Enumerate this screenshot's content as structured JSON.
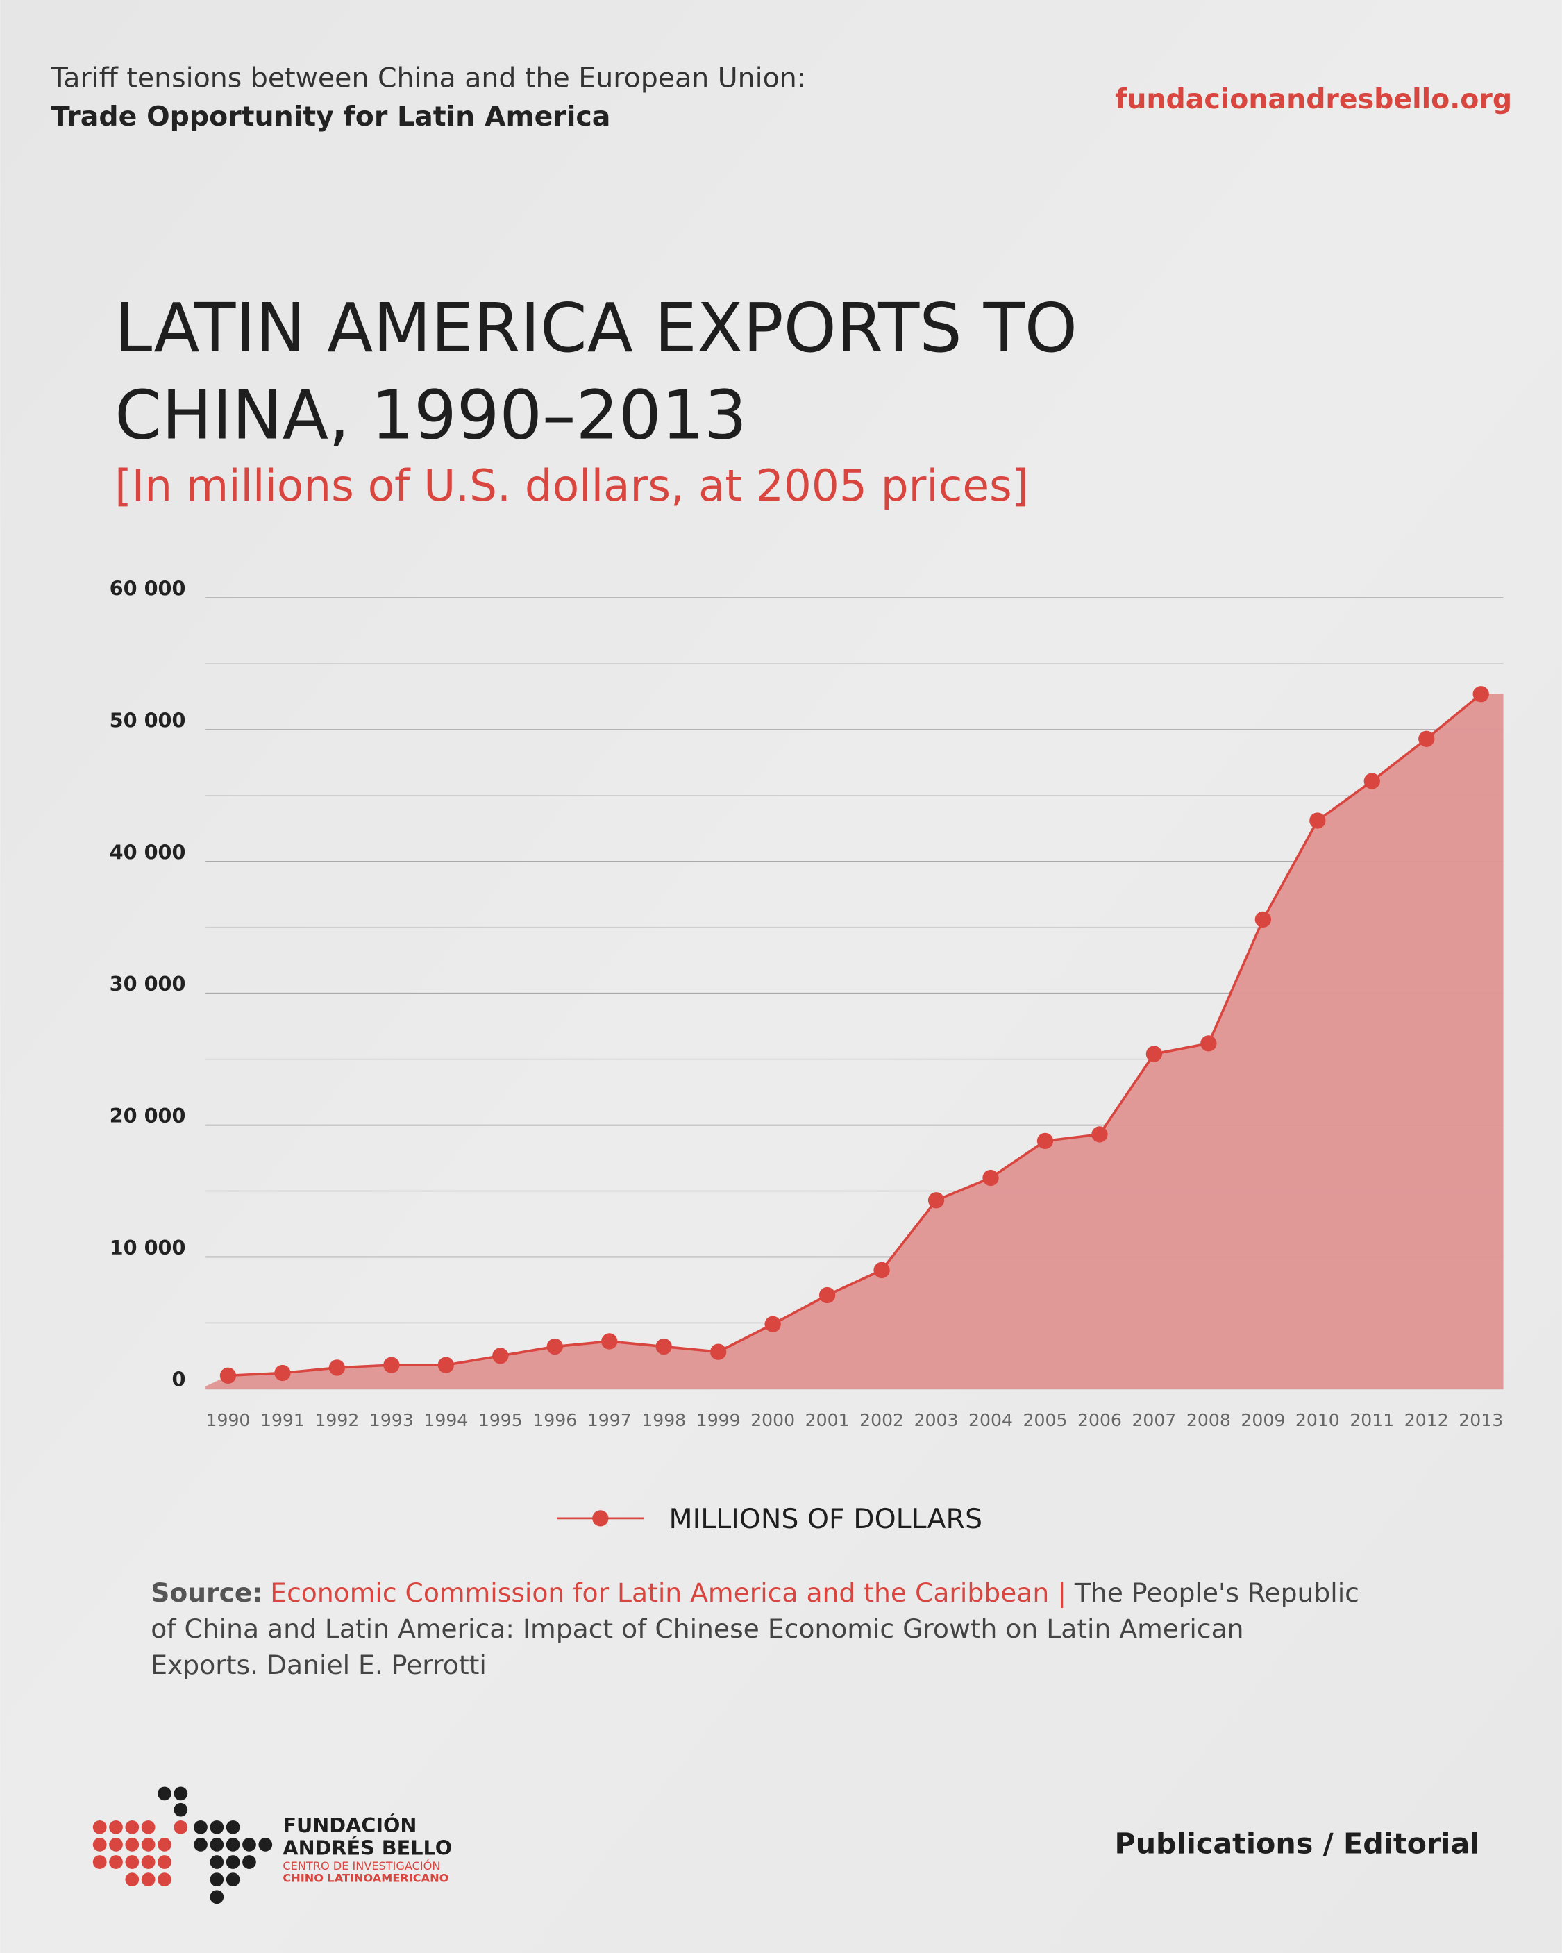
{
  "header": {
    "line1": "Tariff tensions between China and the European Union:",
    "line2": "Trade Opportunity for Latin America",
    "site": "fundacionandresbello.org"
  },
  "chart_data": {
    "type": "area",
    "title": [
      "LATIN AMERICA EXPORTS TO",
      "CHINA, 1990–2013"
    ],
    "subtitle": "[In millions of U.S. dollars, at 2005 prices]",
    "categories": [
      "1990",
      "1991",
      "1992",
      "1993",
      "1994",
      "1995",
      "1996",
      "1997",
      "1998",
      "1999",
      "2000",
      "2001",
      "2002",
      "2003",
      "2004",
      "2005",
      "2006",
      "2007",
      "2008",
      "2009",
      "2010",
      "2011",
      "2012",
      "2013"
    ],
    "series": [
      {
        "name": "MILLIONS OF DOLLARS",
        "color": "#d9453f",
        "values": [
          1000,
          1200,
          1600,
          1800,
          1800,
          2500,
          3200,
          3600,
          3200,
          2800,
          4900,
          7100,
          9000,
          14300,
          16000,
          18800,
          19300,
          25400,
          26200,
          35600,
          43100,
          46100,
          49300,
          52700
        ]
      }
    ],
    "area_color": "#e09593",
    "ylim": [
      0,
      60000
    ],
    "yticks": [
      {
        "value": 0,
        "label": "0"
      },
      {
        "value": 10000,
        "label": "10 000"
      },
      {
        "value": 20000,
        "label": "20 000"
      },
      {
        "value": 30000,
        "label": "30 000"
      },
      {
        "value": 40000,
        "label": "40 000"
      },
      {
        "value": 50000,
        "label": "50 000"
      },
      {
        "value": 60000,
        "label": "60 000"
      }
    ],
    "minor_yticks": [
      5000,
      15000,
      25000,
      35000,
      45000,
      55000
    ],
    "grid": true
  },
  "source": {
    "label": "Source:",
    "org": "Economic Commission for Latin America and the Caribbean |",
    "lines": [
      " The People's Republic",
      "of China and Latin America: Impact of Chinese Economic Growth on Latin American",
      "Exports. Daniel E. Perrotti"
    ]
  },
  "footer": {
    "logo_line1": "FUNDACIÓN",
    "logo_line2": "ANDRÉS BELLO",
    "logo_line3": "CENTRO DE INVESTIGACIÓN",
    "logo_line4": "CHINO LATINOAMERICANO",
    "section": "Publications / Editorial"
  }
}
